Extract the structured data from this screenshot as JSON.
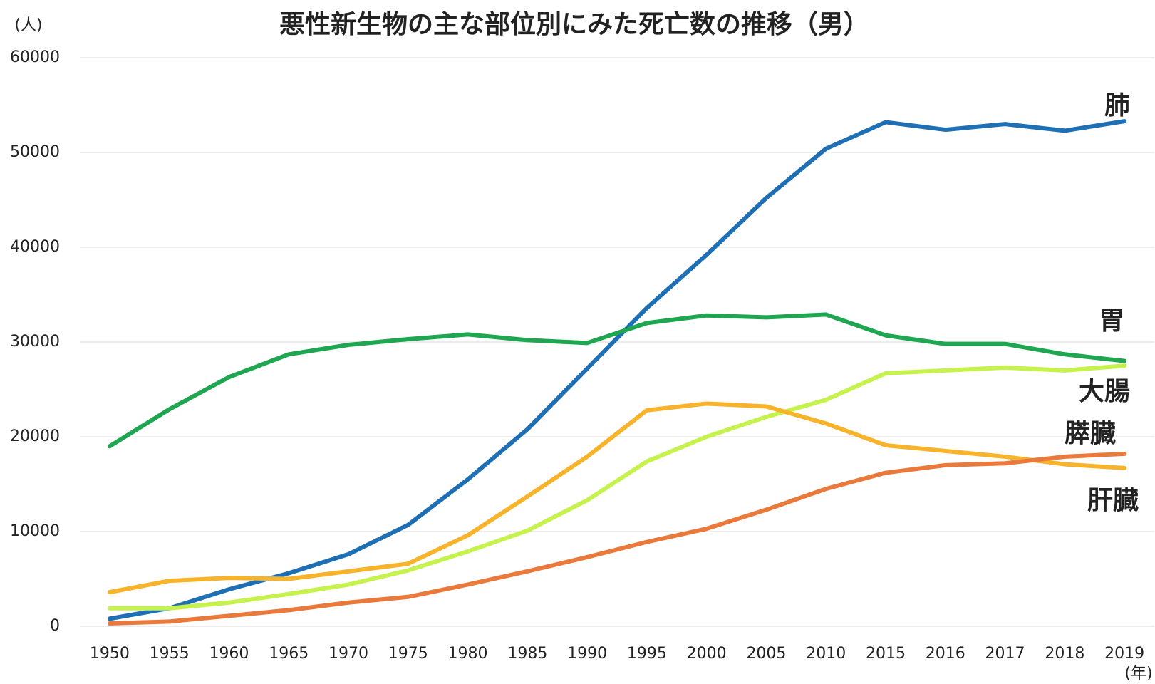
{
  "chart_data": {
    "type": "line",
    "title": "悪性新生物の主な部位別にみた死亡数の推移（男）",
    "y_label": "(人)",
    "x_label": "(年)",
    "categories": [
      "1950",
      "1955",
      "1960",
      "1965",
      "1970",
      "1975",
      "1980",
      "1985",
      "1990",
      "1995",
      "2000",
      "2005",
      "2010",
      "2015",
      "2016",
      "2017",
      "2018",
      "2019"
    ],
    "ylim": [
      0,
      60000
    ],
    "yticks": [
      0,
      10000,
      20000,
      30000,
      40000,
      50000,
      60000
    ],
    "grid": true,
    "series": [
      {
        "name": "肺",
        "color": "#1f6fb5",
        "values": [
          800,
          1900,
          3900,
          5600,
          7600,
          10700,
          15500,
          20800,
          27200,
          33600,
          39200,
          45200,
          50400,
          53200,
          52400,
          53000,
          52300,
          53300
        ]
      },
      {
        "name": "胃",
        "color": "#1fa651",
        "values": [
          19000,
          22900,
          26300,
          28700,
          29700,
          30300,
          30800,
          30200,
          29900,
          32000,
          32800,
          32600,
          32900,
          30700,
          29800,
          29800,
          28700,
          28000
        ]
      },
      {
        "name": "大腸",
        "color": "#c6f24e",
        "values": [
          1900,
          1900,
          2500,
          3400,
          4400,
          5900,
          7900,
          10100,
          13300,
          17400,
          20000,
          22100,
          23900,
          26700,
          27000,
          27300,
          27000,
          27500
        ]
      },
      {
        "name": "膵臓",
        "color": "#f7b32a",
        "values": [
          3600,
          4800,
          5100,
          5000,
          5800,
          6600,
          9600,
          13700,
          17900,
          22800,
          23500,
          23200,
          21400,
          19100,
          18500,
          17900,
          17100,
          16700
        ]
      },
      {
        "name": "肝臓",
        "color": "#e97a3c",
        "values": [
          300,
          500,
          1100,
          1700,
          2500,
          3100,
          4400,
          5800,
          7300,
          8900,
          10300,
          12300,
          14500,
          16200,
          17000,
          17200,
          17900,
          18200
        ]
      }
    ]
  }
}
